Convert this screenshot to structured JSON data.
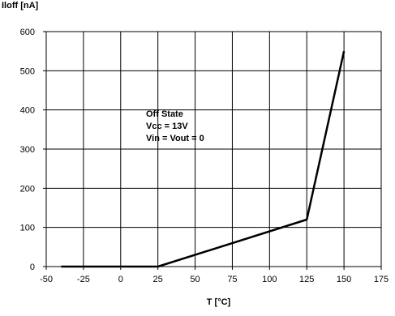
{
  "chart_data": {
    "type": "line",
    "ylabel": "Iloff [nA]",
    "xlabel": "T [°C]",
    "xlim": [
      -50,
      175
    ],
    "ylim": [
      0,
      600
    ],
    "xticks": [
      -50,
      -25,
      0,
      25,
      50,
      75,
      100,
      125,
      150,
      175
    ],
    "yticks": [
      0,
      100,
      200,
      300,
      400,
      500,
      600
    ],
    "grid": true,
    "series": [
      {
        "x": [
          -40,
          25,
          125,
          150
        ],
        "y": [
          0,
          0,
          120,
          550
        ],
        "color": "#000000"
      }
    ],
    "annotation": [
      "Off State",
      "Vcc = 13V",
      "Vin = Vout = 0"
    ]
  }
}
